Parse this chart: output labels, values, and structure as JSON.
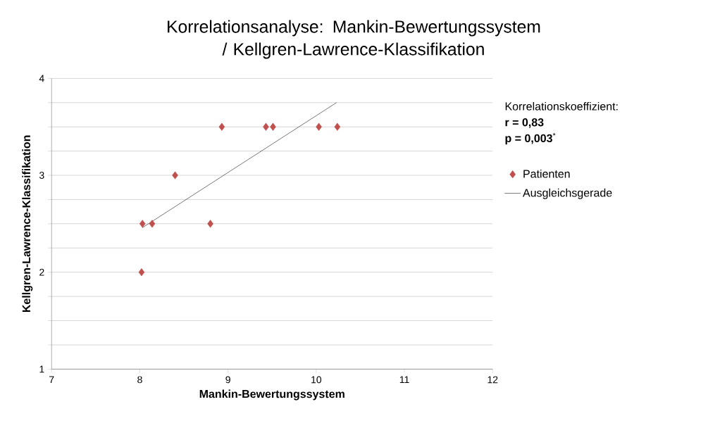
{
  "chart_data": {
    "type": "scatter",
    "title": "Korrelationsanalyse: Mankin-Bewertungssystem / Kellgren-Lawrence-Klassifikation",
    "xlabel": "Mankin-Bewertungssystem",
    "ylabel": "Kellgren-Lawrence-Klassifikation",
    "annotations": [
      "Korrelationskoeffizient:",
      "**r = 0,83**",
      "**p = 0,003**$^{*}$"
    ],
    "xlim": [
      7,
      12
    ],
    "ylim": [
      1,
      4
    ],
    "xticks": [
      7,
      8,
      9,
      10,
      11,
      12
    ],
    "yticks": [
      1,
      {
        "value": 1.25,
        "label": null
      },
      {
        "value": 1.5,
        "label": null
      },
      {
        "value": 1.75,
        "label": null
      },
      2,
      {
        "value": 2.25,
        "label": null
      },
      {
        "value": 2.5,
        "label": null
      },
      {
        "value": 2.75,
        "label": null
      },
      3,
      {
        "value": 3.25,
        "label": null
      },
      {
        "value": 3.5,
        "label": null
      },
      {
        "value": 3.75,
        "label": null
      },
      4
    ],
    "grid": "y",
    "legend": "right",
    "series": [
      {
        "name": "Patienten",
        "marker": "diamond",
        "color": "#c0504d",
        "x": [
          8.93,
          9.43,
          9.51,
          10.03,
          10.24,
          8.4,
          8.03,
          8.14,
          8.8,
          8.02
        ],
        "values": [
          3.5,
          3.5,
          3.5,
          3.5,
          3.5,
          3,
          2.5,
          2.5,
          2.5,
          2
        ]
      },
      {
        "name": "Ausgleichsgerade",
        "type": "line",
        "marker": "none",
        "color": "#000000",
        "x": [
          8.03,
          10.23
        ],
        "values": [
          2.46,
          3.75
        ]
      }
    ]
  }
}
